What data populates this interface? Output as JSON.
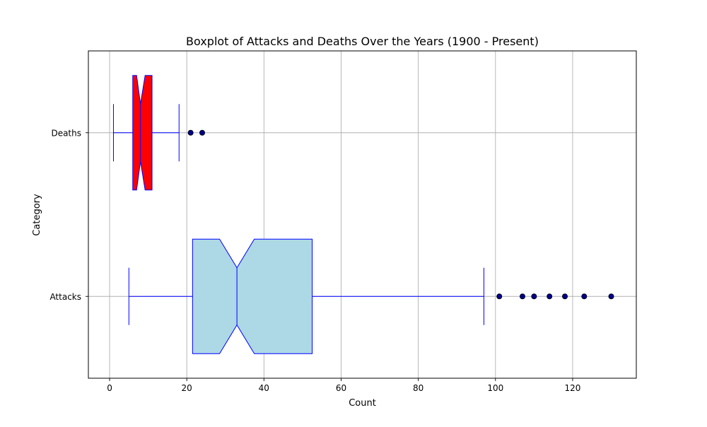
{
  "chart_data": {
    "type": "boxplot",
    "orientation": "horizontal",
    "notched": true,
    "title": "Boxplot of Attacks and Deaths Over the Years (1900 - Present)",
    "xlabel": "Count",
    "ylabel": "Category",
    "xlim": [
      -5.5,
      136.5
    ],
    "xticks": [
      0,
      20,
      40,
      60,
      80,
      100,
      120
    ],
    "grid": true,
    "categories": [
      "Attacks",
      "Deaths"
    ],
    "series": [
      {
        "name": "Attacks",
        "whisker_low": 5,
        "q1": 21.5,
        "median": 33,
        "q3": 52.5,
        "whisker_high": 97,
        "notch_low": 28.5,
        "notch_high": 37.5,
        "outliers": [
          101,
          107,
          110,
          114,
          118,
          123,
          130
        ],
        "fill_color": "#add8e6"
      },
      {
        "name": "Deaths",
        "whisker_low": 1,
        "q1": 6,
        "median": 8,
        "q3": 11,
        "whisker_high": 18,
        "notch_low": 7,
        "notch_high": 9.2,
        "outliers": [
          21,
          24
        ],
        "fill_color": "#ff0000"
      }
    ],
    "colors": {
      "edge": "#0000ff",
      "outlier_fill": "#00008b",
      "grid": "#b0b0b0",
      "axes": "#000000"
    }
  }
}
